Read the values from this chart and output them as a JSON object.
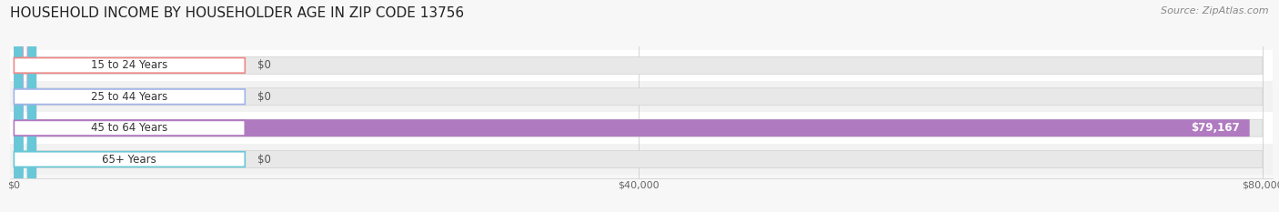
{
  "title": "HOUSEHOLD INCOME BY HOUSEHOLDER AGE IN ZIP CODE 13756",
  "source": "Source: ZipAtlas.com",
  "categories": [
    "15 to 24 Years",
    "25 to 44 Years",
    "45 to 64 Years",
    "65+ Years"
  ],
  "values": [
    0,
    0,
    79167,
    0
  ],
  "max_value": 80000,
  "bar_colors": [
    "#f08888",
    "#a0b4e8",
    "#b07ac0",
    "#68c8d8"
  ],
  "value_labels": [
    "$0",
    "$0",
    "$79,167",
    "$0"
  ],
  "x_ticks": [
    0,
    40000,
    80000
  ],
  "x_tick_labels": [
    "$0",
    "$40,000",
    "$80,000"
  ],
  "background_color": "#f7f7f7",
  "row_colors": [
    "#ffffff",
    "#f2f2f2",
    "#ffffff",
    "#f2f2f2"
  ],
  "bar_bg_color": "#e8e8e8",
  "title_fontsize": 11,
  "source_fontsize": 8,
  "label_fontsize": 8.5,
  "value_fontsize": 8.5
}
